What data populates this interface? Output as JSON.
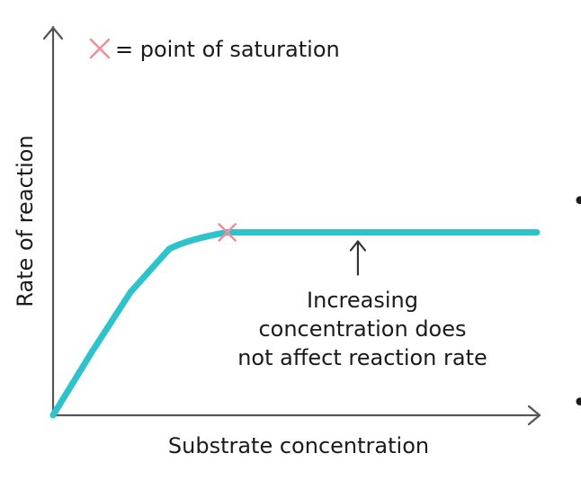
{
  "chart_data": {
    "type": "line",
    "xlabel": "Substrate concentration",
    "ylabel": "Rate of reaction",
    "grid": false,
    "series": [
      {
        "color": "#2cc3cc",
        "points": [
          [
            0,
            0
          ],
          [
            0.08,
            0.19
          ],
          [
            0.16,
            0.37
          ],
          [
            0.24,
            0.5
          ],
          [
            0.28,
            0.53
          ],
          [
            0.36,
            0.55
          ],
          [
            1.0,
            0.55
          ]
        ]
      }
    ],
    "saturation_point": {
      "x": 0.36,
      "y": 0.55,
      "color": "#f08f9a",
      "marker_icon": "cross-icon"
    },
    "legend": {
      "text": "= point of saturation",
      "placement": "top-left"
    },
    "annotation": {
      "lines": [
        "Increasing",
        "concentration does",
        "not affect reaction rate"
      ],
      "arrow_icon": "arrow-up-icon",
      "target_x": 0.63
    },
    "side_bullets": [
      "•",
      "•"
    ]
  }
}
